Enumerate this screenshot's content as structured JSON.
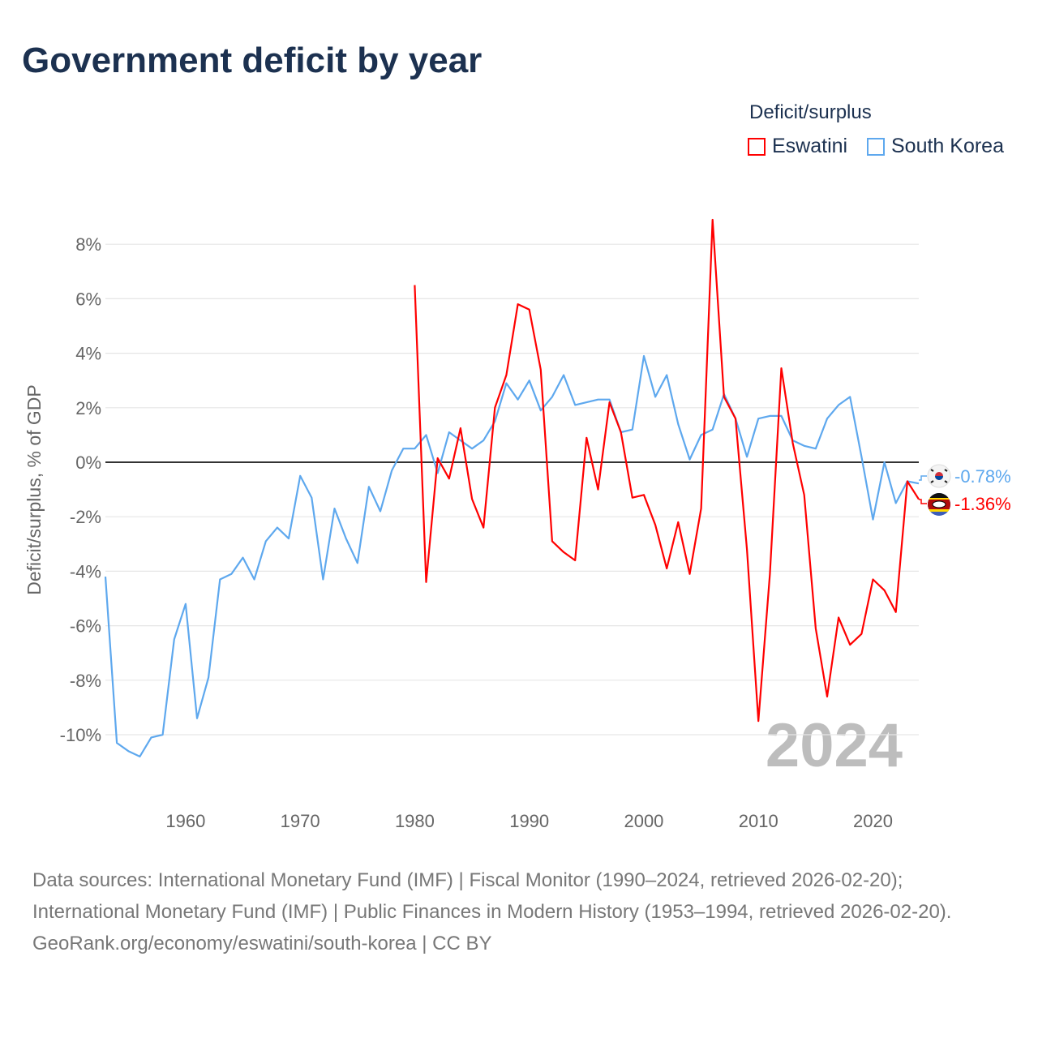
{
  "title": "Government deficit by year",
  "legend": {
    "title": "Deficit/surplus",
    "items": [
      {
        "label": "Eswatini",
        "color": "#ff0000"
      },
      {
        "label": "South Korea",
        "color": "#5ea8ee"
      }
    ]
  },
  "year_watermark": "2024",
  "end_labels": {
    "south_korea": "-0.78%",
    "eswatini": "-1.36%"
  },
  "footer": {
    "sources": "Data sources: International Monetary Fund (IMF) | Fiscal Monitor (1990–2024, retrieved 2026-02-20); International Monetary Fund (IMF) | Public Finances in Modern History (1953–1994, retrieved 2026-02-20).",
    "credit": "GeoRank.org/economy/eswatini/south-korea | CC BY"
  },
  "chart_data": {
    "type": "line",
    "title": "Government deficit by year",
    "xlabel": "",
    "ylabel": "Deficit/surplus, % of GDP",
    "xlim": [
      1953,
      2024
    ],
    "ylim": [
      -11.5,
      9
    ],
    "x_ticks": [
      1960,
      1970,
      1980,
      1990,
      2000,
      2010,
      2020
    ],
    "y_ticks": [
      -10,
      -8,
      -6,
      -4,
      -2,
      0,
      2,
      4,
      6,
      8
    ],
    "y_tick_labels": [
      "-10%",
      "-8%",
      "-6%",
      "-4%",
      "-2%",
      "0%",
      "2%",
      "4%",
      "6%",
      "8%"
    ],
    "grid": true,
    "legend_position": "top-right",
    "series": [
      {
        "name": "South Korea",
        "color": "#5ea8ee",
        "start_year": 1953,
        "values": [
          -4.2,
          -10.3,
          -10.6,
          -10.8,
          -10.1,
          -10.0,
          -6.5,
          -5.2,
          -9.4,
          -7.9,
          -4.3,
          -4.1,
          -3.5,
          -4.3,
          -2.9,
          -2.4,
          -2.8,
          -0.5,
          -1.3,
          -4.3,
          -1.7,
          -2.8,
          -3.7,
          -0.9,
          -1.8,
          -0.3,
          0.5,
          0.5,
          1.0,
          -0.4,
          1.1,
          0.8,
          0.5,
          0.8,
          1.5,
          2.9,
          2.3,
          3.0,
          1.9,
          2.4,
          3.2,
          2.1,
          2.2,
          2.3,
          2.3,
          1.1,
          1.2,
          3.9,
          2.4,
          3.2,
          1.4,
          0.1,
          1.0,
          1.2,
          2.5,
          1.6,
          0.2,
          1.6,
          1.7,
          1.7,
          0.8,
          0.6,
          0.5,
          1.6,
          2.1,
          2.4,
          0.2,
          -2.1,
          0.0,
          -1.5,
          -0.7,
          -0.78
        ]
      },
      {
        "name": "Eswatini",
        "color": "#ff0000",
        "start_year": 1980,
        "values": [
          6.5,
          -4.4,
          0.15,
          -0.6,
          1.25,
          -1.35,
          -2.4,
          2.0,
          3.2,
          5.8,
          5.6,
          3.4,
          -2.9,
          -3.3,
          -3.6,
          0.9,
          -1.0,
          2.2,
          1.1,
          -1.3,
          -1.2,
          -2.3,
          -3.9,
          -2.2,
          -4.1,
          -1.7,
          8.9,
          2.4,
          1.6,
          -3.2,
          -9.5,
          -4.1,
          3.45,
          0.7,
          -1.2,
          -6.1,
          -8.6,
          -5.7,
          -6.7,
          -6.3,
          -4.3,
          -4.7,
          -5.5,
          -0.7,
          -1.36
        ]
      }
    ]
  }
}
